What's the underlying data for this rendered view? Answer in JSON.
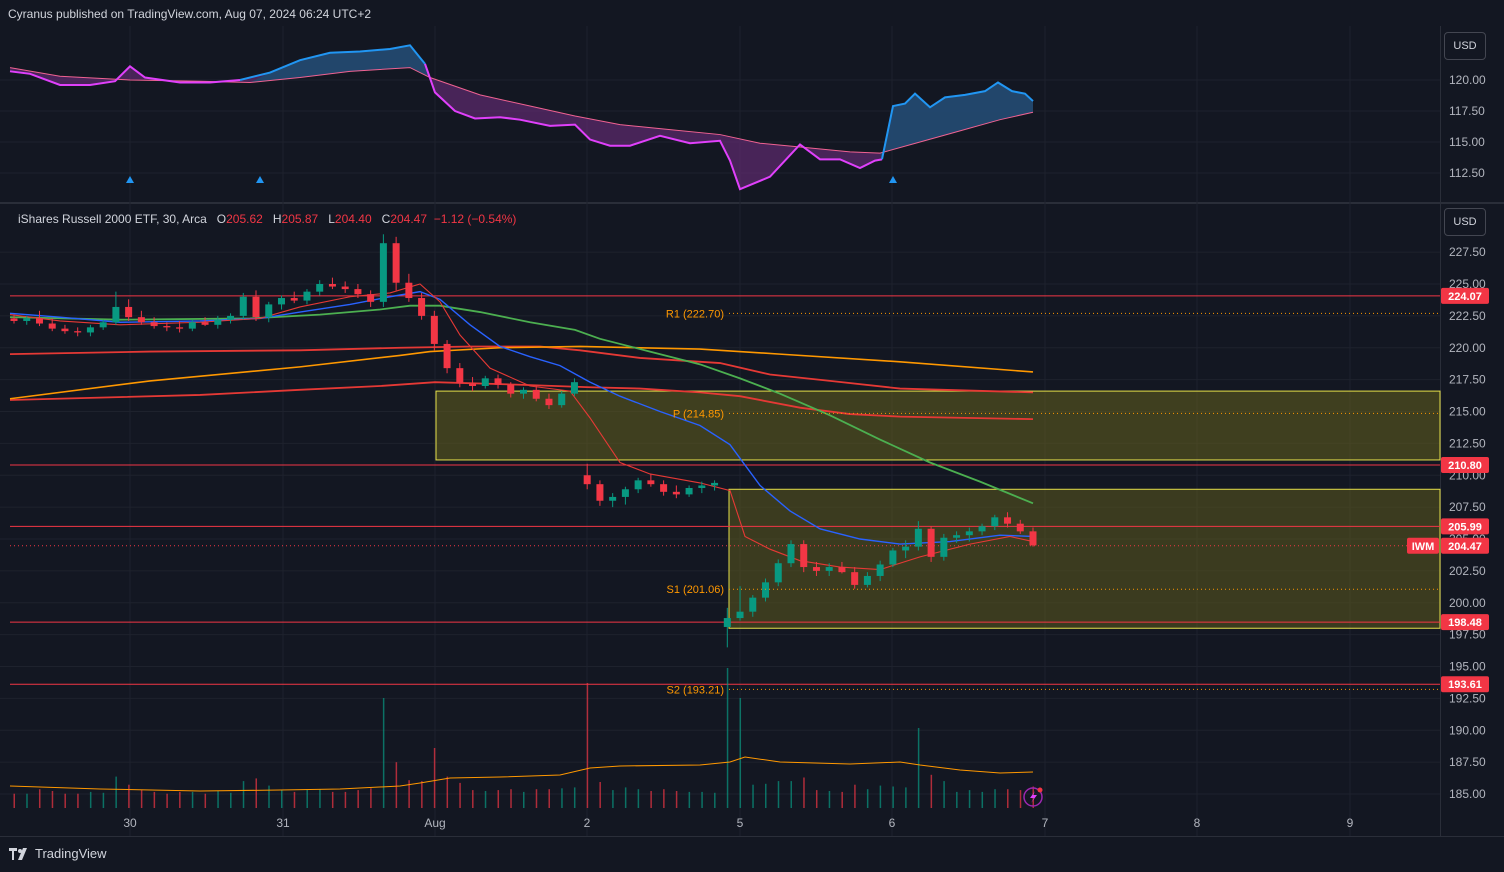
{
  "header": {
    "publisher": "Cyranus published on TradingView.com, Aug 07, 2024 06:24 UTC+2"
  },
  "footer": {
    "brand": "TradingView"
  },
  "top_pane": {
    "currency": "USD",
    "ticks": [
      "120.00",
      "117.50",
      "115.00",
      "112.50"
    ]
  },
  "main_pane": {
    "currency": "USD",
    "legend": {
      "name": "iShares Russell 2000 ETF, 30, Arca",
      "o_label": "O",
      "o": "205.62",
      "h_label": "H",
      "h": "205.87",
      "l_label": "L",
      "l": "204.40",
      "c_label": "C",
      "c": "204.47",
      "change": "−1.12 (−0.54%)"
    },
    "ticks": [
      "227.50",
      "225.00",
      "222.50",
      "220.00",
      "217.50",
      "215.00",
      "212.50",
      "210.00",
      "207.50",
      "205.00",
      "202.50",
      "200.00",
      "197.50",
      "195.00",
      "192.50",
      "190.00",
      "187.50",
      "185.00"
    ],
    "price_tags": [
      {
        "label": "224.07",
        "value": 224.07
      },
      {
        "label": "210.80",
        "value": 210.8
      },
      {
        "label": "205.99",
        "value": 205.99
      },
      {
        "label": "198.48",
        "value": 198.48
      },
      {
        "label": "193.61",
        "value": 193.61
      }
    ],
    "last_price": {
      "symbol": "IWM",
      "value": "204.47"
    },
    "pivots": [
      {
        "label": "R1 (222.70)",
        "value": 222.7
      },
      {
        "label": "P (214.85)",
        "value": 214.85
      },
      {
        "label": "S1 (201.06)",
        "value": 201.06
      },
      {
        "label": "S2 (193.21)",
        "value": 193.21
      }
    ]
  },
  "x_axis": {
    "labels": [
      "30",
      "31",
      "Aug",
      "2",
      "5",
      "6",
      "7",
      "8",
      "9"
    ]
  },
  "colors": {
    "up": "#089981",
    "down": "#f23645",
    "zone": "#5d5a1e",
    "zone_border": "#e6e04a",
    "sma_green": "#4caf50",
    "ma_orange": "#ff9800",
    "ma_red": "#e53935",
    "ema_blue": "#2962ff",
    "osc_fill_pos": "#1e4a6e",
    "osc_fill_neg": "#5b2a6b"
  },
  "chart_data": {
    "type": "candlestick",
    "title": "iShares Russell 2000 ETF, 30, Arca",
    "ylim": [
      184,
      229
    ],
    "x_categories": [
      "30",
      "31",
      "Aug",
      "2",
      "5",
      "6",
      "7",
      "8",
      "9"
    ],
    "candles": [
      [
        222.3,
        222.6,
        221.9,
        222.1
      ],
      [
        222.1,
        222.5,
        221.8,
        222.3
      ],
      [
        222.3,
        222.9,
        221.7,
        221.9
      ],
      [
        221.9,
        222.3,
        221.3,
        221.5
      ],
      [
        221.5,
        221.8,
        221.1,
        221.3
      ],
      [
        221.3,
        221.6,
        220.9,
        221.2
      ],
      [
        221.2,
        221.8,
        220.9,
        221.6
      ],
      [
        221.6,
        222.2,
        221.4,
        222.0
      ],
      [
        222.0,
        224.4,
        221.8,
        223.2
      ],
      [
        223.2,
        223.8,
        222.1,
        222.4
      ],
      [
        222.4,
        222.9,
        221.8,
        222.0
      ],
      [
        222.0,
        222.4,
        221.5,
        221.7
      ],
      [
        221.7,
        222.0,
        221.3,
        221.6
      ],
      [
        221.6,
        222.1,
        221.2,
        221.5
      ],
      [
        221.5,
        222.2,
        221.3,
        222.0
      ],
      [
        222.0,
        222.4,
        221.7,
        221.8
      ],
      [
        221.8,
        222.5,
        221.5,
        222.2
      ],
      [
        222.2,
        222.7,
        221.9,
        222.5
      ],
      [
        222.5,
        224.3,
        222.2,
        224.0
      ],
      [
        224.0,
        224.5,
        222.1,
        222.4
      ],
      [
        222.4,
        223.6,
        222.0,
        223.4
      ],
      [
        223.4,
        224.1,
        223.0,
        223.9
      ],
      [
        223.9,
        224.4,
        223.5,
        223.7
      ],
      [
        223.7,
        224.6,
        223.4,
        224.4
      ],
      [
        224.4,
        225.3,
        224.1,
        225.0
      ],
      [
        225.0,
        225.5,
        224.6,
        224.8
      ],
      [
        224.8,
        225.2,
        224.3,
        224.6
      ],
      [
        224.6,
        225.0,
        223.9,
        224.2
      ],
      [
        224.2,
        224.5,
        223.2,
        223.6
      ],
      [
        223.6,
        228.9,
        223.2,
        228.2
      ],
      [
        228.2,
        228.7,
        224.5,
        225.1
      ],
      [
        225.1,
        225.8,
        223.6,
        223.9
      ],
      [
        223.9,
        224.3,
        222.2,
        222.5
      ],
      [
        222.5,
        222.9,
        219.8,
        220.3
      ],
      [
        220.3,
        220.6,
        218.0,
        218.4
      ],
      [
        218.4,
        218.8,
        216.9,
        217.2
      ],
      [
        217.2,
        217.7,
        216.6,
        217.0
      ],
      [
        217.0,
        217.8,
        216.8,
        217.6
      ],
      [
        217.6,
        217.9,
        216.8,
        217.1
      ],
      [
        217.1,
        217.3,
        216.1,
        216.4
      ],
      [
        216.4,
        216.9,
        216.0,
        216.7
      ],
      [
        216.7,
        217.0,
        215.8,
        216.0
      ],
      [
        216.0,
        216.4,
        215.2,
        215.5
      ],
      [
        215.5,
        216.6,
        215.3,
        216.4
      ],
      [
        216.4,
        217.6,
        216.2,
        217.3
      ],
      [
        210.0,
        210.9,
        208.9,
        209.3
      ],
      [
        209.3,
        209.6,
        207.6,
        208.0
      ],
      [
        208.0,
        208.6,
        207.5,
        208.3
      ],
      [
        208.3,
        209.1,
        207.7,
        208.9
      ],
      [
        208.9,
        209.8,
        208.6,
        209.6
      ],
      [
        209.6,
        210.1,
        209.1,
        209.3
      ],
      [
        209.3,
        209.6,
        208.4,
        208.7
      ],
      [
        208.7,
        209.2,
        208.2,
        208.5
      ],
      [
        208.5,
        209.2,
        208.3,
        209.0
      ],
      [
        209.0,
        209.5,
        208.6,
        209.2
      ],
      [
        209.2,
        209.6,
        208.8,
        209.4
      ],
      [
        198.1,
        199.6,
        196.5,
        198.8
      ],
      [
        198.8,
        201.3,
        198.6,
        199.3
      ],
      [
        199.3,
        200.6,
        198.9,
        200.4
      ],
      [
        200.4,
        201.9,
        200.1,
        201.6
      ],
      [
        201.6,
        203.4,
        201.3,
        203.1
      ],
      [
        203.1,
        204.9,
        202.8,
        204.6
      ],
      [
        204.6,
        204.9,
        202.4,
        202.8
      ],
      [
        202.8,
        203.2,
        202.1,
        202.5
      ],
      [
        202.5,
        203.1,
        202.1,
        202.8
      ],
      [
        202.8,
        203.2,
        202.3,
        202.4
      ],
      [
        202.4,
        202.8,
        201.1,
        201.4
      ],
      [
        201.4,
        202.4,
        201.2,
        202.1
      ],
      [
        202.1,
        203.3,
        201.7,
        203.0
      ],
      [
        203.0,
        204.3,
        202.8,
        204.1
      ],
      [
        204.1,
        204.9,
        203.5,
        204.4
      ],
      [
        204.4,
        206.4,
        204.1,
        205.8
      ],
      [
        205.8,
        206.0,
        203.2,
        203.6
      ],
      [
        203.6,
        205.4,
        203.3,
        205.1
      ],
      [
        205.1,
        205.6,
        204.7,
        205.3
      ],
      [
        205.3,
        205.9,
        204.8,
        205.6
      ],
      [
        205.6,
        206.2,
        205.3,
        206.0
      ],
      [
        206.0,
        206.9,
        205.7,
        206.7
      ],
      [
        206.7,
        207.1,
        205.9,
        206.2
      ],
      [
        206.2,
        206.5,
        205.4,
        205.6
      ],
      [
        205.6,
        205.9,
        204.4,
        204.5
      ]
    ],
    "horizontal_levels": [
      224.07,
      210.8,
      205.99,
      198.48,
      193.61
    ],
    "zones": [
      {
        "top": 216.6,
        "bottom": 211.2
      },
      {
        "top": 208.9,
        "bottom": 198.0
      }
    ]
  }
}
